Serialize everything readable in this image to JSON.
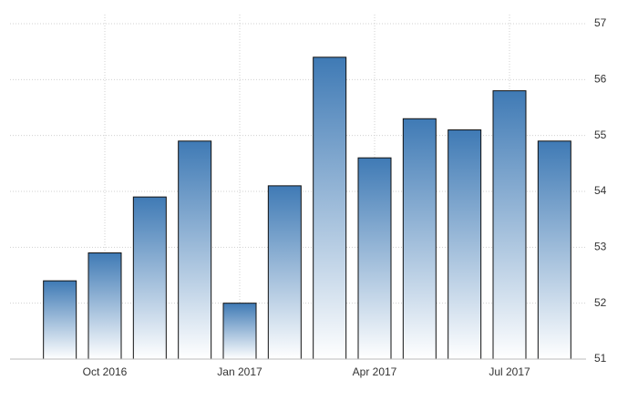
{
  "chart_data": {
    "type": "bar",
    "categories": [
      null,
      "Oct 2016",
      null,
      null,
      "Jan 2017",
      null,
      null,
      "Apr 2017",
      null,
      null,
      "Jul 2017",
      null
    ],
    "values": [
      52.4,
      52.9,
      53.9,
      54.9,
      52.0,
      54.1,
      56.4,
      54.6,
      55.3,
      55.1,
      55.8,
      54.9
    ],
    "color": "#3f7ab5",
    "ylim": [
      51,
      57
    ],
    "yticks": [
      51,
      52,
      53,
      54,
      55,
      56,
      57
    ],
    "grid": true
  }
}
